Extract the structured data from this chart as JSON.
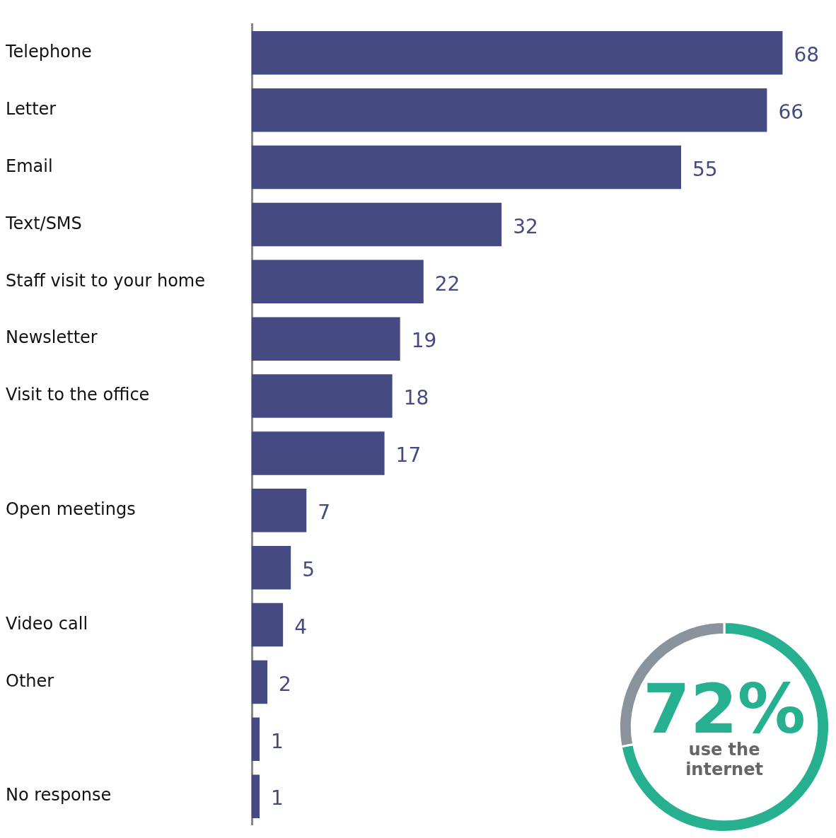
{
  "chart_data": [
    {
      "type": "bar",
      "orientation": "horizontal",
      "categories": [
        "Telephone",
        "Letter",
        "Email",
        "Text/SMS",
        "Staff visit to your home",
        "Newsletter",
        "Visit to the office",
        null,
        "Open meetings",
        null,
        "Video call",
        "Other",
        null,
        "No response"
      ],
      "values": [
        68,
        66,
        55,
        32,
        22,
        19,
        18,
        17,
        7,
        5,
        4,
        2,
        1,
        1
      ],
      "color": "#454a82",
      "data_labels": true,
      "legend": false
    },
    {
      "type": "donut",
      "categories": [
        "use the internet",
        null
      ],
      "values": [
        72,
        28
      ],
      "colors": [
        "#26b08f",
        "#8a939c"
      ],
      "value_labels": [
        "72%",
        null
      ],
      "legend": false
    }
  ]
}
